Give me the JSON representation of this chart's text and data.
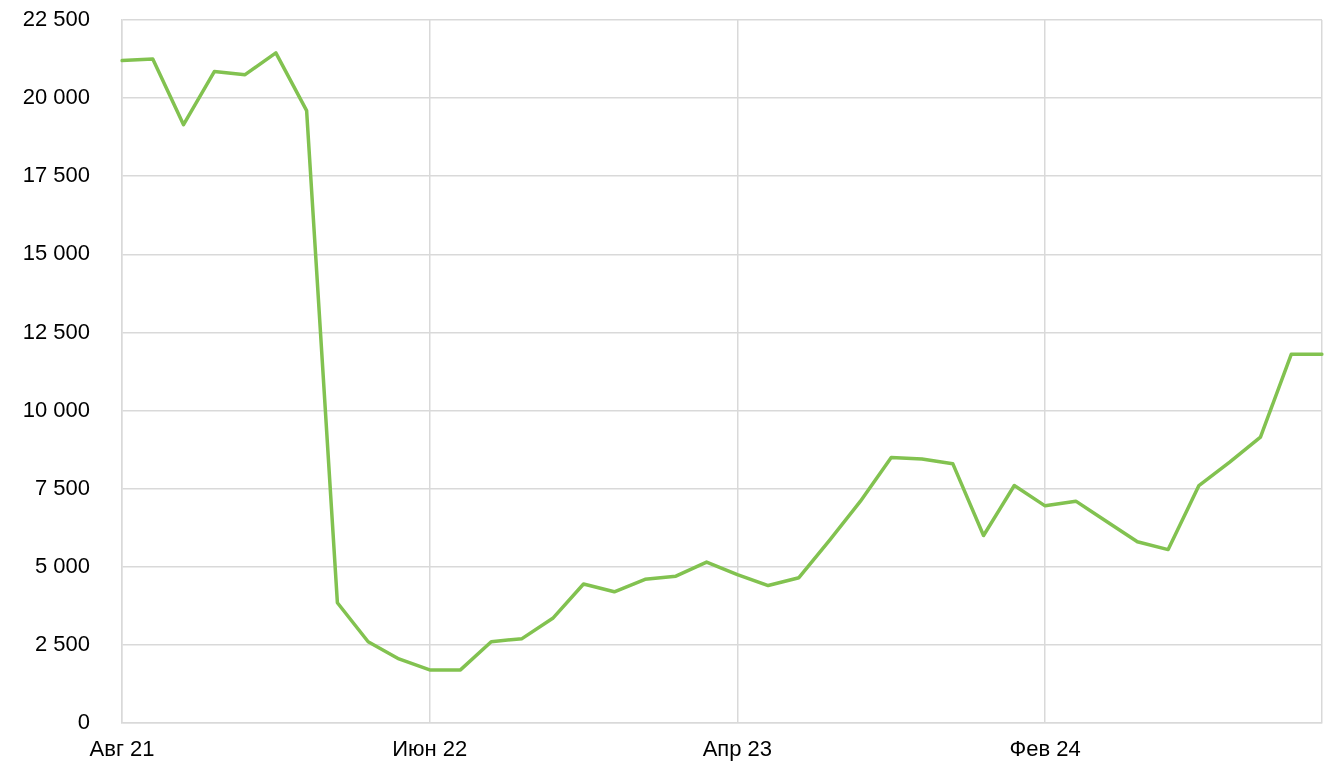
{
  "chart_data": {
    "type": "line",
    "categories": [
      "Авг 21",
      null,
      null,
      null,
      null,
      null,
      null,
      null,
      null,
      null,
      "Июн 22",
      null,
      null,
      null,
      null,
      null,
      null,
      null,
      null,
      null,
      "Апр 23",
      null,
      null,
      null,
      null,
      null,
      null,
      null,
      null,
      null,
      "Фев 24",
      null,
      null,
      null,
      null,
      null,
      null,
      null,
      null,
      null
    ],
    "values": [
      21200,
      21250,
      19150,
      20850,
      20750,
      21450,
      19600,
      3850,
      2600,
      2050,
      1700,
      1700,
      2600,
      2700,
      3350,
      4450,
      4200,
      4600,
      4700,
      5150,
      4750,
      4400,
      4650,
      5850,
      7100,
      8500,
      8450,
      8300,
      6000,
      7600,
      6950,
      7100,
      6450,
      5800,
      5550,
      7600,
      8350,
      9150,
      11800,
      11800
    ],
    "color": "#82c250",
    "ylim": [
      0,
      22500
    ],
    "yticks": [
      0,
      {
        "value": 2500,
        "label": "2 500"
      },
      {
        "value": 5000,
        "label": "5 000"
      },
      {
        "value": 7500,
        "label": "7 500"
      },
      {
        "value": 10000,
        "label": "10 000"
      },
      {
        "value": 12500,
        "label": "12 500"
      },
      {
        "value": 15000,
        "label": "15 000"
      },
      {
        "value": 17500,
        "label": "17 500"
      },
      {
        "value": 20000,
        "label": "20 000"
      },
      {
        "value": 22500,
        "label": "22 500"
      }
    ],
    "grid": true,
    "marker": "none",
    "line_style": "solid"
  }
}
